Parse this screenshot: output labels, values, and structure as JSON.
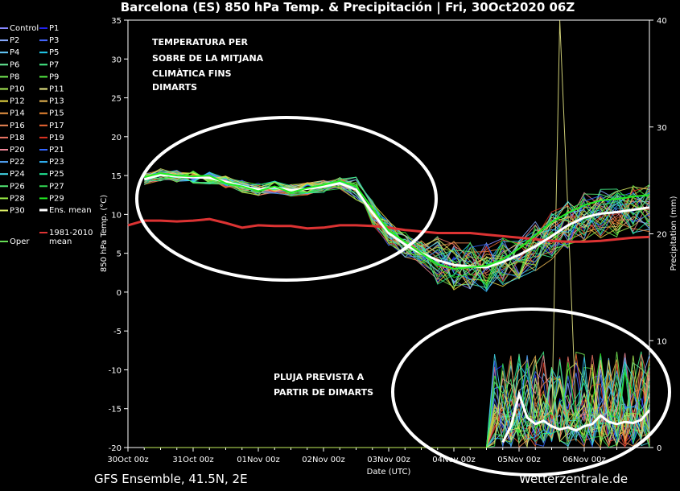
{
  "chart_data": {
    "type": "line",
    "title": "Barcelona  (ES)  850 hPa Temp. & Precipitación | Fri, 30Oct2020 06Z",
    "ylabel": "850 hPa Temp. (°C)",
    "y2label": "Precipitation (mm)",
    "xlabel": "Date (UTC)",
    "ylim": [
      -20,
      35
    ],
    "y2lim": [
      0,
      40
    ],
    "yticks": [
      35,
      30,
      25,
      20,
      15,
      10,
      5,
      0,
      -5,
      -10,
      -15,
      -20
    ],
    "y2ticks": [
      40,
      30,
      20,
      10,
      0
    ],
    "xticks": [
      "30Oct 00z",
      "31Oct 00z",
      "01Nov 00z",
      "02Nov 00z",
      "03Nov 00z",
      "04Nov 00z",
      "05Nov 00z",
      "06Nov 00z"
    ],
    "xlim_hours": [
      0,
      192
    ],
    "grid": false,
    "legend_position": "left outside",
    "legend": [
      {
        "label": "Control",
        "color": "#8888ff"
      },
      {
        "label": "P1",
        "color": "#2222ee"
      },
      {
        "label": "P2",
        "color": "#88aaff"
      },
      {
        "label": "P3",
        "color": "#4466ff"
      },
      {
        "label": "P4",
        "color": "#66ccff"
      },
      {
        "label": "P5",
        "color": "#22ccee"
      },
      {
        "label": "P6",
        "color": "#66ee99"
      },
      {
        "label": "P7",
        "color": "#44ee88"
      },
      {
        "label": "P8",
        "color": "#77ee55"
      },
      {
        "label": "P9",
        "color": "#55ee44"
      },
      {
        "label": "P10",
        "color": "#aaee55"
      },
      {
        "label": "P11",
        "color": "#eeee88"
      },
      {
        "label": "P12",
        "color": "#eedd44"
      },
      {
        "label": "P13",
        "color": "#eebb55"
      },
      {
        "label": "P14",
        "color": "#ee9944"
      },
      {
        "label": "P15",
        "color": "#ee8833"
      },
      {
        "label": "P16",
        "color": "#ee8855"
      },
      {
        "label": "P17",
        "color": "#ee6633"
      },
      {
        "label": "P18",
        "color": "#ee7766"
      },
      {
        "label": "P19",
        "color": "#dd3322"
      },
      {
        "label": "P20",
        "color": "#ee8899"
      },
      {
        "label": "P21",
        "color": "#3366ff"
      },
      {
        "label": "P22",
        "color": "#55aaff"
      },
      {
        "label": "P23",
        "color": "#33bbff"
      },
      {
        "label": "P24",
        "color": "#44ddee"
      },
      {
        "label": "P25",
        "color": "#22ee99"
      },
      {
        "label": "P26",
        "color": "#55ee77"
      },
      {
        "label": "P27",
        "color": "#33dd55"
      },
      {
        "label": "P28",
        "color": "#99ee44"
      },
      {
        "label": "P29",
        "color": "#22ee22"
      },
      {
        "label": "P30",
        "color": "#ddee66"
      },
      {
        "label": "Ens. mean",
        "color": "#ffffff"
      },
      {
        "label": "1981-2010\nmean",
        "color": "#dd3333"
      },
      {
        "label": "Oper",
        "color": "#66dd55"
      }
    ],
    "series": [
      {
        "name": "1981-2010 mean",
        "color": "#dd3333",
        "x": [
          0,
          6,
          12,
          18,
          24,
          30,
          36,
          42,
          48,
          54,
          60,
          66,
          72,
          78,
          84,
          90,
          96,
          102,
          108,
          114,
          120,
          126,
          132,
          138,
          144,
          150,
          156,
          162,
          168,
          174,
          180,
          186,
          192
        ],
        "y": [
          8.6,
          9.2,
          9.2,
          9.1,
          9.2,
          9.4,
          8.9,
          8.3,
          8.6,
          8.5,
          8.5,
          8.2,
          8.3,
          8.6,
          8.6,
          8.5,
          8.3,
          8.0,
          7.8,
          7.6,
          7.6,
          7.6,
          7.4,
          7.2,
          7.0,
          6.8,
          6.6,
          6.5,
          6.5,
          6.6,
          6.8,
          7.0,
          7.1
        ]
      },
      {
        "name": "Ens. mean",
        "color": "#ffffff",
        "x": [
          6,
          12,
          18,
          24,
          30,
          36,
          42,
          48,
          54,
          60,
          66,
          72,
          78,
          84,
          90,
          96,
          102,
          108,
          114,
          120,
          126,
          132,
          138,
          144,
          150,
          156,
          162,
          168,
          174,
          180,
          186,
          192
        ],
        "y": [
          14.5,
          15.1,
          14.9,
          14.8,
          14.7,
          14.2,
          13.6,
          13.2,
          13.5,
          13.1,
          13.3,
          13.6,
          14.0,
          13.2,
          10.2,
          7.6,
          6.1,
          5.0,
          4.1,
          3.5,
          3.3,
          3.2,
          3.9,
          4.8,
          5.9,
          7.2,
          8.6,
          9.6,
          10.1,
          10.3,
          10.6,
          10.9
        ]
      },
      {
        "name": "Ens. mean precip",
        "color": "#ffffff",
        "axis": "right",
        "x": [
          138,
          141,
          144,
          147,
          150,
          153,
          156,
          159,
          162,
          165,
          168,
          171,
          174,
          177,
          180,
          183,
          186,
          189,
          192
        ],
        "y": [
          0.5,
          2.0,
          5.0,
          2.8,
          2.2,
          2.5,
          2.0,
          1.7,
          1.9,
          1.6,
          2.0,
          2.2,
          3.0,
          2.4,
          2.2,
          2.4,
          2.3,
          2.6,
          3.5
        ]
      },
      {
        "name": "Oper",
        "color": "#22ee22",
        "x": [
          6,
          12,
          18,
          24,
          30,
          36,
          42,
          48,
          54,
          60,
          66,
          72,
          78,
          84,
          90,
          96,
          102,
          108,
          114,
          120,
          126,
          132,
          138,
          144,
          150,
          156,
          162,
          168,
          174,
          180,
          186,
          192
        ],
        "y": [
          14.8,
          15.3,
          15.0,
          14.9,
          15.0,
          14.0,
          13.6,
          13.0,
          13.6,
          12.8,
          13.4,
          13.8,
          14.3,
          13.6,
          10.8,
          7.9,
          6.5,
          5.0,
          3.6,
          3.0,
          3.2,
          3.4,
          4.2,
          5.6,
          7.3,
          9.0,
          10.2,
          11.2,
          11.8,
          12.0,
          12.3,
          12.5
        ]
      }
    ],
    "annotations": [
      "TEMPERATURA PER",
      "SOBRE DE LA MITJANA",
      "CLIMÀTICA FINS",
      "DIMARTS",
      "PLUJA PREVISTA A",
      "PARTIR DE DIMARTS"
    ]
  },
  "footer": {
    "left": "GFS Ensemble, 41.5N, 2E",
    "right": "Wetterzentrale.de"
  }
}
